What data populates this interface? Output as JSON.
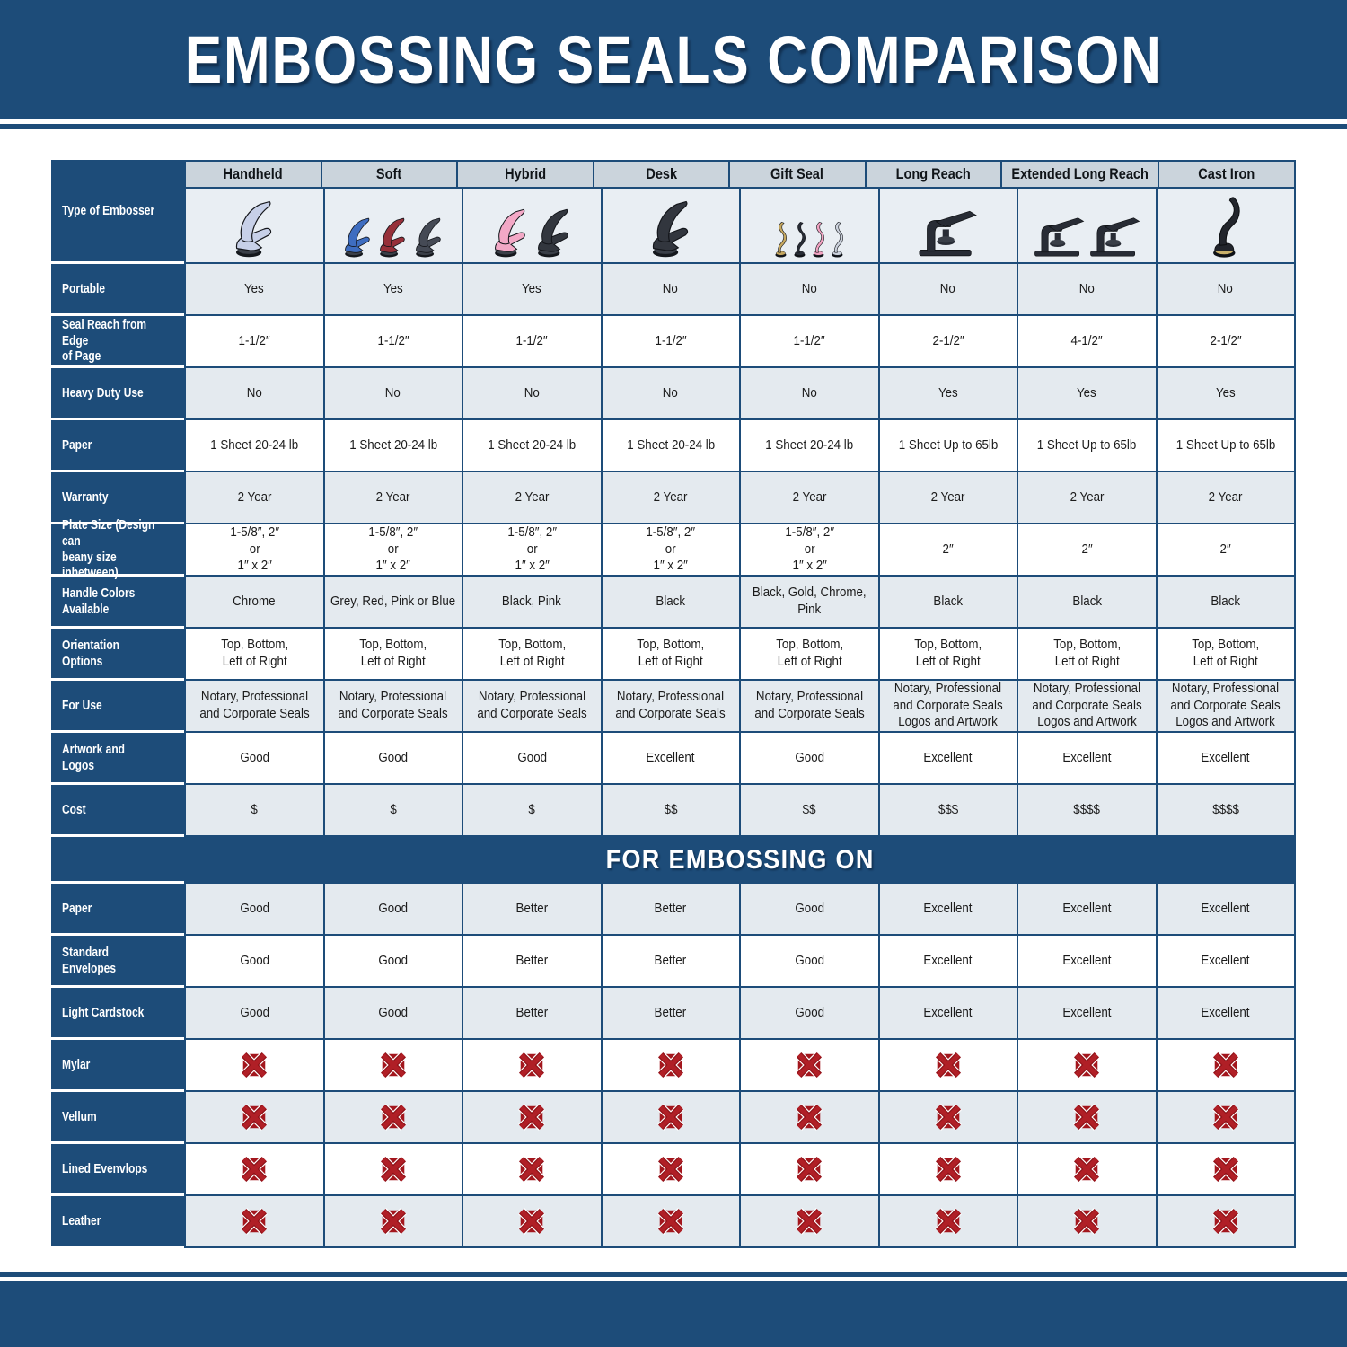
{
  "title": "EMBOSSING SEALS COMPARISON",
  "colors": {
    "navy": "#1d4c79",
    "header_cell_bg": "#cbd4dc",
    "row_shaded_bg": "#e4eaef",
    "row_white_bg": "#ffffff",
    "image_row_bg": "#e9eef3",
    "x_icon_red": "#b01f26",
    "x_icon_dark_red": "#a3161d"
  },
  "table": {
    "corner_label": "Type of Embosser",
    "columns": [
      {
        "label": "Handheld",
        "images": [
          {
            "shape": "plier",
            "name": "handheld-embosser-image",
            "color": "#c7d0e8"
          }
        ]
      },
      {
        "label": "Soft",
        "images": [
          {
            "shape": "plier",
            "name": "soft-embosser-blue-image",
            "color": "#3e6dc0"
          },
          {
            "shape": "plier",
            "name": "soft-embosser-red-image",
            "color": "#97303a"
          },
          {
            "shape": "plier",
            "name": "soft-embosser-grey-image",
            "color": "#454a55"
          }
        ]
      },
      {
        "label": "Hybrid",
        "images": [
          {
            "shape": "plier",
            "name": "hybrid-embosser-pink-image",
            "color": "#f3a8c6"
          },
          {
            "shape": "plier",
            "name": "hybrid-embosser-black-image",
            "color": "#32363e"
          }
        ]
      },
      {
        "label": "Desk",
        "images": [
          {
            "shape": "plier",
            "name": "desk-embosser-image",
            "color": "#32363e"
          }
        ]
      },
      {
        "label": "Gift Seal",
        "images": [
          {
            "shape": "swan",
            "name": "gift-seal-gold-image",
            "color": "#c6a75f"
          },
          {
            "shape": "swan",
            "name": "gift-seal-black-image",
            "color": "#282c35"
          },
          {
            "shape": "swan",
            "name": "gift-seal-pink-image",
            "color": "#f2a3c2"
          },
          {
            "shape": "swan",
            "name": "gift-seal-chrome-image",
            "color": "#ccd2dd"
          }
        ]
      },
      {
        "label": "Long Reach",
        "images": [
          {
            "shape": "press",
            "name": "long-reach-embosser-image",
            "color": "#282c35"
          }
        ]
      },
      {
        "label": "Extended Long Reach",
        "images": [
          {
            "shape": "press",
            "name": "extended-long-reach-embosser-image-1",
            "color": "#282c35"
          },
          {
            "shape": "press",
            "name": "extended-long-reach-embosser-image-2",
            "color": "#282c35"
          }
        ]
      },
      {
        "label": "Cast Iron",
        "images": [
          {
            "shape": "upright",
            "name": "cast-iron-embosser-image",
            "color": "#22252c"
          }
        ]
      }
    ],
    "spec_rows": [
      {
        "label": "Portable",
        "cells": [
          "Yes",
          "Yes",
          "Yes",
          "No",
          "No",
          "No",
          "No",
          "No"
        ]
      },
      {
        "label": "Seal Reach from Edge\nof Page",
        "cells": [
          "1-1/2″",
          "1-1/2″",
          "1-1/2″",
          "1-1/2″",
          "1-1/2″",
          "2-1/2″",
          "4-1/2″",
          "2-1/2″"
        ]
      },
      {
        "label": "Heavy Duty Use",
        "cells": [
          "No",
          "No",
          "No",
          "No",
          "No",
          "Yes",
          "Yes",
          "Yes"
        ]
      },
      {
        "label": "Paper",
        "cells": [
          "1 Sheet 20-24 lb",
          "1 Sheet 20-24 lb",
          "1 Sheet 20-24 lb",
          "1 Sheet 20-24 lb",
          "1 Sheet 20-24 lb",
          "1 Sheet Up to 65lb",
          "1 Sheet Up to 65lb",
          "1 Sheet Up to 65lb"
        ]
      },
      {
        "label": "Warranty",
        "cells": [
          "2 Year",
          "2 Year",
          "2 Year",
          "2 Year",
          "2 Year",
          "2 Year",
          "2 Year",
          "2 Year"
        ]
      },
      {
        "label": "Plate Size (Design can\nbeany size inbetween)",
        "cells": [
          "1-5/8″, 2″\nor\n1″ x 2″",
          "1-5/8″, 2″\nor\n1″ x 2″",
          "1-5/8″, 2″\nor\n1″ x 2″",
          "1-5/8″, 2″\nor\n1″ x 2″",
          "1-5/8″, 2″\nor\n1″ x 2″",
          "2″",
          "2″",
          "2″"
        ]
      },
      {
        "label": "Handle Colors Available",
        "cells": [
          "Chrome",
          "Grey, Red, Pink or Blue",
          "Black, Pink",
          "Black",
          "Black, Gold, Chrome, Pink",
          "Black",
          "Black",
          "Black"
        ]
      },
      {
        "label": "Orientation Options",
        "cells": [
          "Top, Bottom,\nLeft of Right",
          "Top, Bottom,\nLeft of Right",
          "Top, Bottom,\nLeft of Right",
          "Top, Bottom,\nLeft of Right",
          "Top, Bottom,\nLeft of Right",
          "Top, Bottom,\nLeft of Right",
          "Top, Bottom,\nLeft of Right",
          "Top, Bottom,\nLeft of Right"
        ]
      },
      {
        "label": "For Use",
        "cells": [
          "Notary, Professional\nand Corporate Seals",
          "Notary, Professional\nand Corporate Seals",
          "Notary, Professional\nand Corporate Seals",
          "Notary, Professional\nand Corporate Seals",
          "Notary, Professional\nand Corporate Seals",
          "Notary, Professional\nand Corporate Seals\nLogos and Artwork",
          "Notary, Professional\nand Corporate Seals\nLogos and Artwork",
          "Notary, Professional\nand Corporate Seals\nLogos and Artwork"
        ]
      },
      {
        "label": "Artwork and Logos",
        "cells": [
          "Good",
          "Good",
          "Good",
          "Excellent",
          "Good",
          "Excellent",
          "Excellent",
          "Excellent"
        ]
      },
      {
        "label": "Cost",
        "cells": [
          "$",
          "$",
          "$",
          "$$",
          "$$",
          "$$$",
          "$$$$",
          "$$$$"
        ]
      }
    ],
    "section_title": "FOR EMBOSSING ON",
    "embossing_rows": [
      {
        "label": "Paper",
        "cells": [
          "Good",
          "Good",
          "Better",
          "Better",
          "Good",
          "Excellent",
          "Excellent",
          "Excellent"
        ]
      },
      {
        "label": "Standard Envelopes",
        "cells": [
          "Good",
          "Good",
          "Better",
          "Better",
          "Good",
          "Excellent",
          "Excellent",
          "Excellent"
        ]
      },
      {
        "label": "Light Cardstock",
        "cells": [
          "Good",
          "Good",
          "Better",
          "Better",
          "Good",
          "Excellent",
          "Excellent",
          "Excellent"
        ]
      },
      {
        "label": "Mylar",
        "cells": [
          "red-x-icon",
          "red-x-icon",
          "red-x-icon",
          "red-x-icon",
          "red-x-icon",
          "red-x-icon",
          "red-x-icon",
          "red-x-icon"
        ]
      },
      {
        "label": "Vellum",
        "cells": [
          "red-x-icon",
          "red-x-icon",
          "red-x-icon",
          "red-x-icon",
          "red-x-icon",
          "red-x-icon",
          "red-x-icon",
          "red-x-icon"
        ]
      },
      {
        "label": "Lined Evenvlops",
        "cells": [
          "red-x-icon",
          "red-x-icon",
          "red-x-icon",
          "red-x-icon",
          "red-x-icon",
          "red-x-icon",
          "red-x-icon",
          "red-x-icon"
        ]
      },
      {
        "label": "Leather",
        "cells": [
          "red-x-icon",
          "red-x-icon",
          "red-x-icon",
          "red-x-icon",
          "red-x-icon",
          "red-x-icon",
          "red-x-icon",
          "red-x-icon"
        ]
      }
    ]
  }
}
